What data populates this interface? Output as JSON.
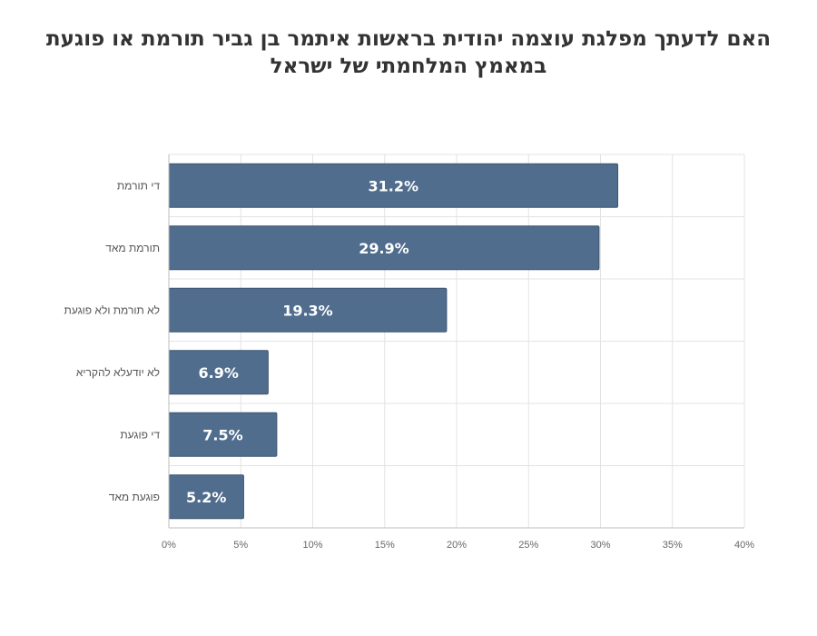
{
  "chart_data": {
    "type": "bar",
    "orientation": "horizontal",
    "title": "האם לדעתך מפלגת עוצמה יהודית בראשות איתמר בן גביר תורמת או פוגעת במאמץ המלחמתי של ישראל",
    "categories": [
      "די תורמת",
      "תורמת מאד",
      "לא תורמת ולא פוגעת",
      "לא יודעלא להקריא",
      "די פוגעת",
      "פוגעת מאד"
    ],
    "values": [
      31.2,
      29.9,
      19.3,
      6.9,
      7.5,
      5.2
    ],
    "data_labels": [
      "31.2%",
      "29.9%",
      "19.3%",
      "6.9%",
      "7.5%",
      "5.2%"
    ],
    "x_ticks": [
      "0%",
      "5%",
      "10%",
      "15%",
      "20%",
      "25%",
      "30%",
      "35%",
      "40%"
    ],
    "xlim": [
      0,
      40
    ],
    "xlabel": "",
    "ylabel": "",
    "grid": true,
    "legend": "none",
    "bar_color": "#506d8e"
  }
}
